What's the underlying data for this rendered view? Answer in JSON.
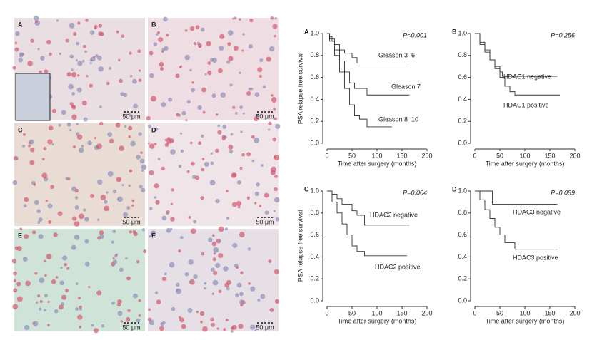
{
  "histology": [
    {
      "label": "A",
      "scale": "50 μm"
    },
    {
      "label": "B",
      "scale": "50 μm"
    },
    {
      "label": "C",
      "scale": "50 μm"
    },
    {
      "label": "D",
      "scale": "50 μm"
    },
    {
      "label": "E",
      "scale": "50 μm"
    },
    {
      "label": "F",
      "scale": "50 μm"
    }
  ],
  "chart_data": [
    {
      "type": "step",
      "panel": "A",
      "annotation": "P<0.001",
      "ylabel": "PSA relapse free survival",
      "xlabel": "Time after surgery (months)",
      "xlim": [
        0,
        200
      ],
      "ylim": [
        0,
        1
      ],
      "xticks": [
        0,
        50,
        100,
        150,
        200
      ],
      "yticks": [
        {
          "value": 0,
          "label": "0.0"
        },
        0.2,
        0.4,
        0.6,
        0.8,
        {
          "value": 1,
          "label": "1.0"
        }
      ],
      "series": [
        {
          "name": "Gleason 3–6",
          "color": "#333333",
          "x": [
            0,
            5,
            10,
            15,
            25,
            35,
            50,
            60,
            160
          ],
          "values": [
            1,
            0.97,
            0.93,
            0.9,
            0.85,
            0.82,
            0.78,
            0.73,
            0.73
          ]
        },
        {
          "name": "Gleason 7",
          "color": "#333333",
          "x": [
            0,
            5,
            15,
            25,
            35,
            45,
            55,
            80,
            165
          ],
          "values": [
            1,
            0.95,
            0.85,
            0.75,
            0.65,
            0.55,
            0.5,
            0.44,
            0.44
          ]
        },
        {
          "name": "Gleason 8–10",
          "color": "#333333",
          "x": [
            0,
            5,
            15,
            25,
            35,
            45,
            55,
            65,
            80,
            130
          ],
          "values": [
            1,
            0.93,
            0.8,
            0.65,
            0.5,
            0.35,
            0.25,
            0.22,
            0.15,
            0.15
          ]
        }
      ]
    },
    {
      "type": "step",
      "panel": "B",
      "annotation": "P=0.256",
      "xlabel": "Time after surgery (months)",
      "xlim": [
        0,
        200
      ],
      "ylim": [
        0,
        1
      ],
      "xticks": [
        0,
        50,
        100,
        150,
        200
      ],
      "yticks": [
        {
          "value": 0,
          "label": "0.0"
        },
        0.2,
        0.4,
        0.6,
        0.8,
        {
          "value": 1,
          "label": "1.0"
        }
      ],
      "series": [
        {
          "name": "HDAC1 negative",
          "color": "#333333",
          "x": [
            0,
            10,
            20,
            30,
            40,
            50,
            55,
            165
          ],
          "values": [
            1,
            0.9,
            0.83,
            0.76,
            0.7,
            0.65,
            0.61,
            0.61
          ]
        },
        {
          "name": "HDAC1 positive",
          "color": "#333333",
          "x": [
            0,
            10,
            20,
            30,
            40,
            50,
            60,
            70,
            80,
            170
          ],
          "values": [
            1,
            0.92,
            0.85,
            0.76,
            0.68,
            0.6,
            0.52,
            0.47,
            0.44,
            0.44
          ]
        }
      ]
    },
    {
      "type": "step",
      "panel": "C",
      "annotation": "P=0.004",
      "ylabel": "PSA relapse free survival",
      "xlabel": "Time after surgery (months)",
      "xlim": [
        0,
        200
      ],
      "ylim": [
        0,
        1
      ],
      "xticks": [
        0,
        50,
        100,
        150,
        200
      ],
      "yticks": [
        {
          "value": 0,
          "label": "0.0"
        },
        0.2,
        0.4,
        0.6,
        0.8,
        {
          "value": 1,
          "label": "1.0"
        }
      ],
      "series": [
        {
          "name": "HDAC2 negative",
          "color": "#333333",
          "x": [
            0,
            10,
            20,
            30,
            50,
            60,
            75,
            165
          ],
          "values": [
            1,
            0.97,
            0.93,
            0.88,
            0.82,
            0.78,
            0.69,
            0.69
          ]
        },
        {
          "name": "HDAC2 positive",
          "color": "#333333",
          "x": [
            0,
            10,
            20,
            30,
            40,
            50,
            60,
            75,
            160
          ],
          "values": [
            1,
            0.9,
            0.8,
            0.7,
            0.6,
            0.5,
            0.45,
            0.41,
            0.41
          ]
        }
      ]
    },
    {
      "type": "step",
      "panel": "D",
      "annotation": "P=0.089",
      "xlabel": "Time after surgery (months)",
      "xlim": [
        0,
        200
      ],
      "ylim": [
        0,
        1
      ],
      "xticks": [
        0,
        50,
        100,
        150,
        200
      ],
      "yticks": [
        {
          "value": 0,
          "label": "0.0"
        },
        0.2,
        0.4,
        0.6,
        0.8,
        {
          "value": 1,
          "label": "1.0"
        }
      ],
      "series": [
        {
          "name": "HDAC3 negative",
          "color": "#333333",
          "x": [
            0,
            30,
            35,
            165
          ],
          "values": [
            1,
            1,
            0.88,
            0.88
          ]
        },
        {
          "name": "HDAC3 positive",
          "color": "#333333",
          "x": [
            0,
            10,
            20,
            30,
            40,
            50,
            60,
            80,
            165
          ],
          "values": [
            1,
            0.92,
            0.83,
            0.75,
            0.67,
            0.6,
            0.53,
            0.47,
            0.47
          ]
        }
      ]
    }
  ]
}
